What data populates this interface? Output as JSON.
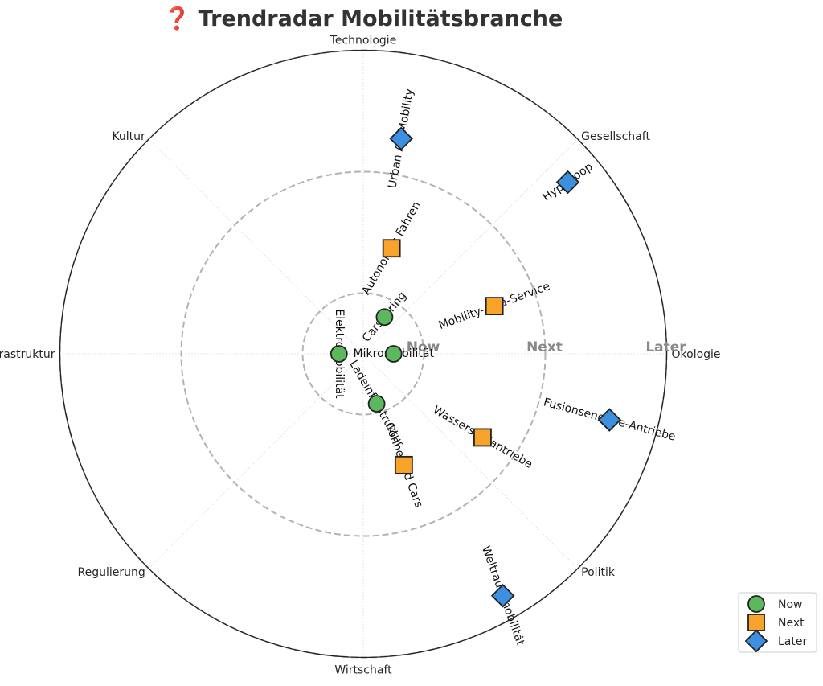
{
  "chart_data": {
    "type": "scatter",
    "projection": "polar",
    "title": "❓ Trendradar Mobilitätsbranche",
    "axes": [
      "Technologie",
      "Gesellschaft",
      "Ökologie",
      "Politik",
      "Wirtschaft",
      "Regulierung",
      "Infrastruktur",
      "Kultur"
    ],
    "axis_angles_deg": [
      90,
      45,
      0,
      -45,
      -90,
      -135,
      180,
      135
    ],
    "rings": [
      {
        "name": "Now",
        "radius": 1
      },
      {
        "name": "Next",
        "radius": 3
      },
      {
        "name": "Later",
        "radius": 5
      }
    ],
    "rlim": [
      0,
      5
    ],
    "legend_position": "lower-right",
    "series": [
      {
        "name": "Now",
        "marker": "circle",
        "color": "#5cb85c",
        "points": [
          {
            "label": "Elektromobilität",
            "angle": 180,
            "r": 0.4,
            "label_rotation": -90
          },
          {
            "label": "Carsharing",
            "angle": 60,
            "r": 0.7,
            "label_rotation": 50
          },
          {
            "label": "Mikromobilität",
            "angle": 0,
            "r": 0.5,
            "label_rotation": 0
          },
          {
            "label": "Ladeinfrastruktur",
            "angle": -75,
            "r": 0.85,
            "label_rotation": -60
          }
        ]
      },
      {
        "name": "Next",
        "marker": "square",
        "color": "#f7a32c",
        "points": [
          {
            "label": "Autonomes Fahren",
            "angle": 75,
            "r": 1.8,
            "label_rotation": 60
          },
          {
            "label": "Mobility-as-a-Service",
            "angle": 20,
            "r": 2.3,
            "label_rotation": 20
          },
          {
            "label": "Wasserstoffantriebe",
            "angle": -35,
            "r": 2.4,
            "label_rotation": -30
          },
          {
            "label": "Connected Cars",
            "angle": -70,
            "r": 1.95,
            "label_rotation": -70
          }
        ]
      },
      {
        "name": "Later",
        "marker": "diamond",
        "color": "#3d8fe0",
        "points": [
          {
            "label": "Urban Air Mobility",
            "angle": 80,
            "r": 3.6,
            "label_rotation": 80
          },
          {
            "label": "Hyperloop",
            "angle": 40,
            "r": 4.4,
            "label_rotation": 35
          },
          {
            "label": "Fusionsenergie-Antriebe",
            "angle": -15,
            "r": 4.2,
            "label_rotation": -15
          },
          {
            "label": "Weltraummobilität",
            "angle": -60,
            "r": 4.6,
            "label_rotation": -70
          }
        ]
      }
    ]
  }
}
